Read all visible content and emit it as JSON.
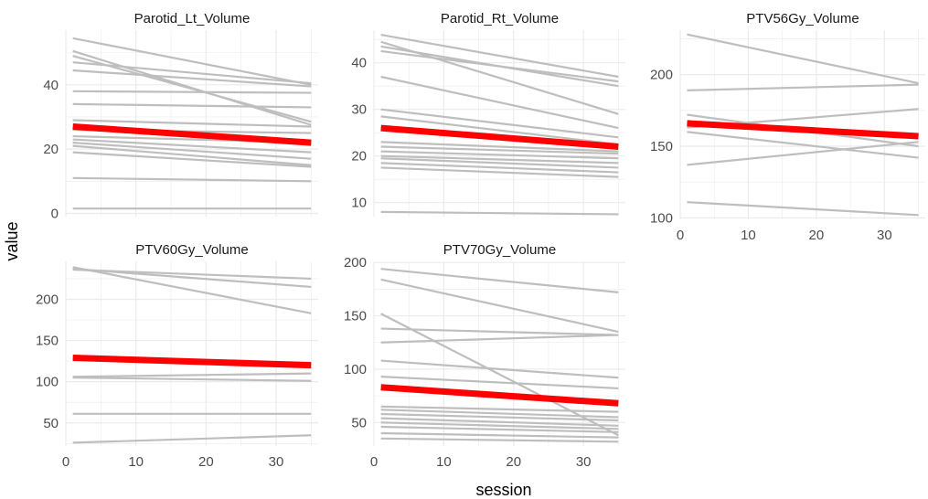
{
  "chart_data": {
    "type": "line",
    "xlabel": "session",
    "ylabel": "value",
    "colors": {
      "individual": "#bebebe",
      "mean": "#ff0000",
      "grid": "#ebebeb"
    },
    "panels": [
      {
        "title": "Parotid_Lt_Volume",
        "xlim": [
          0,
          36
        ],
        "ylim": [
          -1,
          57
        ],
        "xticks": [],
        "yticks": [
          0,
          20,
          40
        ],
        "series": [
          {
            "x": [
              1,
              35
            ],
            "y": [
              54.5,
              40.0
            ]
          },
          {
            "x": [
              1,
              35
            ],
            "y": [
              50.5,
              27.5
            ]
          },
          {
            "x": [
              1,
              35
            ],
            "y": [
              49.0,
              28.5
            ]
          },
          {
            "x": [
              1,
              35
            ],
            "y": [
              47.0,
              40.5
            ]
          },
          {
            "x": [
              1,
              35
            ],
            "y": [
              44.5,
              39.5
            ]
          },
          {
            "x": [
              1,
              35
            ],
            "y": [
              38.0,
              37.5
            ]
          },
          {
            "x": [
              1,
              35
            ],
            "y": [
              34.0,
              33.0
            ]
          },
          {
            "x": [
              1,
              35
            ],
            "y": [
              29.0,
              27.0
            ]
          },
          {
            "x": [
              1,
              35
            ],
            "y": [
              26.0,
              25.0
            ]
          },
          {
            "x": [
              1,
              35
            ],
            "y": [
              24.0,
              22.0
            ]
          },
          {
            "x": [
              1,
              35
            ],
            "y": [
              23.0,
              19.0
            ]
          },
          {
            "x": [
              1,
              35
            ],
            "y": [
              22.0,
              17.0
            ]
          },
          {
            "x": [
              1,
              35
            ],
            "y": [
              21.0,
              15.0
            ]
          },
          {
            "x": [
              1,
              35
            ],
            "y": [
              19.0,
              14.5
            ]
          },
          {
            "x": [
              1,
              35
            ],
            "y": [
              11.0,
              10.0
            ]
          },
          {
            "x": [
              1,
              35
            ],
            "y": [
              1.5,
              1.5
            ]
          }
        ],
        "mean": {
          "x": [
            1,
            35
          ],
          "y": [
            27.0,
            22.0
          ]
        }
      },
      {
        "title": "Parotid_Rt_Volume",
        "xlim": [
          0,
          36
        ],
        "ylim": [
          7,
          47
        ],
        "xticks": [],
        "yticks": [
          10,
          20,
          30,
          40
        ],
        "series": [
          {
            "x": [
              1,
              35
            ],
            "y": [
              46.0,
              37.0
            ]
          },
          {
            "x": [
              1,
              35
            ],
            "y": [
              44.5,
              29.0
            ]
          },
          {
            "x": [
              1,
              35
            ],
            "y": [
              43.5,
              35.0
            ]
          },
          {
            "x": [
              1,
              35
            ],
            "y": [
              42.5,
              36.0
            ]
          },
          {
            "x": [
              1,
              35
            ],
            "y": [
              37.0,
              26.0
            ]
          },
          {
            "x": [
              1,
              35
            ],
            "y": [
              30.0,
              24.0
            ]
          },
          {
            "x": [
              1,
              35
            ],
            "y": [
              28.5,
              22.5
            ]
          },
          {
            "x": [
              1,
              35
            ],
            "y": [
              23.0,
              21.0
            ]
          },
          {
            "x": [
              1,
              35
            ],
            "y": [
              22.0,
              20.5
            ]
          },
          {
            "x": [
              1,
              35
            ],
            "y": [
              21.0,
              19.5
            ]
          },
          {
            "x": [
              1,
              35
            ],
            "y": [
              20.0,
              18.5
            ]
          },
          {
            "x": [
              1,
              35
            ],
            "y": [
              19.5,
              17.5
            ]
          },
          {
            "x": [
              1,
              35
            ],
            "y": [
              18.5,
              16.5
            ]
          },
          {
            "x": [
              1,
              35
            ],
            "y": [
              17.5,
              15.5
            ]
          },
          {
            "x": [
              1,
              35
            ],
            "y": [
              8.0,
              7.5
            ]
          }
        ],
        "mean": {
          "x": [
            1,
            35
          ],
          "y": [
            26.0,
            22.0
          ]
        }
      },
      {
        "title": "PTV56Gy_Volume",
        "xlim": [
          0,
          36
        ],
        "ylim": [
          99,
          231
        ],
        "xticks": [
          0,
          10,
          20,
          30
        ],
        "yticks": [
          100,
          150,
          200
        ],
        "series": [
          {
            "x": [
              1,
              35
            ],
            "y": [
              228.0,
              194.0
            ]
          },
          {
            "x": [
              1,
              35
            ],
            "y": [
              189.0,
              193.0
            ]
          },
          {
            "x": [
              1,
              35
            ],
            "y": [
              172.0,
              150.0
            ]
          },
          {
            "x": [
              1,
              35
            ],
            "y": [
              163.0,
              176.0
            ]
          },
          {
            "x": [
              1,
              35
            ],
            "y": [
              160.0,
              142.0
            ]
          },
          {
            "x": [
              1,
              35
            ],
            "y": [
              137.0,
              153.0
            ]
          },
          {
            "x": [
              1,
              35
            ],
            "y": [
              111.0,
              102.0
            ]
          }
        ],
        "mean": {
          "x": [
            1,
            35
          ],
          "y": [
            166.0,
            157.0
          ]
        }
      },
      {
        "title": "PTV60Gy_Volume",
        "xlim": [
          0,
          36
        ],
        "ylim": [
          22,
          246
        ],
        "xticks": [
          0,
          10,
          20,
          30
        ],
        "yticks": [
          50,
          100,
          150,
          200
        ],
        "series": [
          {
            "x": [
              1,
              35
            ],
            "y": [
              239.0,
              183.0
            ]
          },
          {
            "x": [
              1,
              35
            ],
            "y": [
              237.0,
              215.0
            ]
          },
          {
            "x": [
              1,
              35
            ],
            "y": [
              236.0,
              225.0
            ]
          },
          {
            "x": [
              1,
              35
            ],
            "y": [
              106.0,
              110.0
            ]
          },
          {
            "x": [
              1,
              35
            ],
            "y": [
              105.0,
              101.0
            ]
          },
          {
            "x": [
              1,
              35
            ],
            "y": [
              61.0,
              61.0
            ]
          },
          {
            "x": [
              1,
              35
            ],
            "y": [
              26.0,
              35.0
            ]
          }
        ],
        "mean": {
          "x": [
            1,
            35
          ],
          "y": [
            129.0,
            120.0
          ]
        }
      },
      {
        "title": "PTV70Gy_Volume",
        "xlim": [
          0,
          36
        ],
        "ylim": [
          28,
          201
        ],
        "xticks": [
          0,
          10,
          20,
          30
        ],
        "yticks": [
          50,
          100,
          150,
          200
        ],
        "series": [
          {
            "x": [
              1,
              35
            ],
            "y": [
              194.0,
              172.0
            ]
          },
          {
            "x": [
              1,
              35
            ],
            "y": [
              184.0,
              135.0
            ]
          },
          {
            "x": [
              1,
              35
            ],
            "y": [
              152.0,
              38.0
            ]
          },
          {
            "x": [
              1,
              35
            ],
            "y": [
              138.0,
              132.0
            ]
          },
          {
            "x": [
              1,
              35
            ],
            "y": [
              125.0,
              132.0
            ]
          },
          {
            "x": [
              1,
              35
            ],
            "y": [
              108.0,
              92.0
            ]
          },
          {
            "x": [
              1,
              35
            ],
            "y": [
              93.0,
              82.0
            ]
          },
          {
            "x": [
              1,
              35
            ],
            "y": [
              65.0,
              60.0
            ]
          },
          {
            "x": [
              1,
              35
            ],
            "y": [
              62.0,
              55.0
            ]
          },
          {
            "x": [
              1,
              35
            ],
            "y": [
              58.0,
              52.0
            ]
          },
          {
            "x": [
              1,
              35
            ],
            "y": [
              54.0,
              47.0
            ]
          },
          {
            "x": [
              1,
              35
            ],
            "y": [
              50.0,
              44.0
            ]
          },
          {
            "x": [
              1,
              35
            ],
            "y": [
              46.0,
              41.0
            ]
          },
          {
            "x": [
              1,
              35
            ],
            "y": [
              40.0,
              36.0
            ]
          },
          {
            "x": [
              1,
              35
            ],
            "y": [
              35.0,
              32.0
            ]
          }
        ],
        "mean": {
          "x": [
            1,
            35
          ],
          "y": [
            83.0,
            68.0
          ]
        }
      }
    ]
  }
}
